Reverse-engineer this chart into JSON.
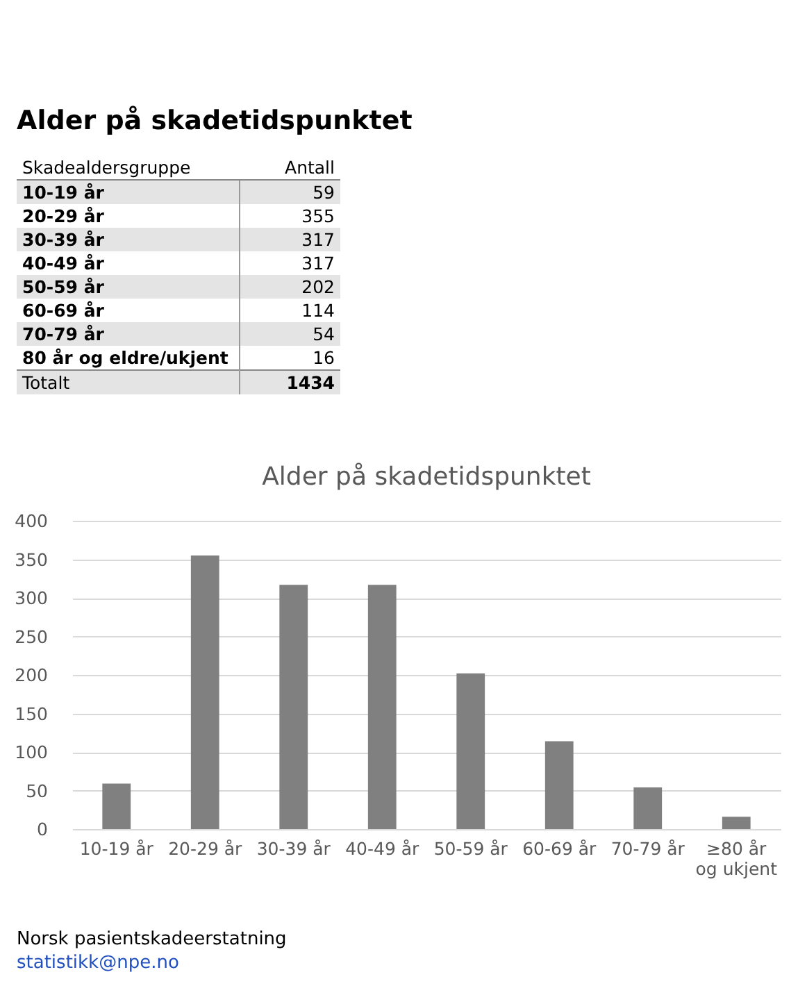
{
  "chart_data": [
    {
      "type": "other",
      "title": "Alder på skadetidspunktet",
      "xlabel": "Skadealdersgruppe",
      "ylabel": "Antall",
      "categories": [
        "10-19 år",
        "20-29 år",
        "30-39 år",
        "40-49 år",
        "50-59 år",
        "60-69 år",
        "70-79 år",
        "80 år og eldre/ukjent"
      ],
      "values": [
        59,
        355,
        317,
        317,
        202,
        114,
        54,
        16
      ],
      "data_labels": true,
      "annotations": [
        "Totalt",
        "1434"
      ]
    },
    {
      "type": "bar",
      "title": "Alder på skadetidspunktet",
      "categories": [
        "10-19 år",
        "20-29 år",
        "30-39 år",
        "40-49 år",
        "50-59 år",
        "60-69 år",
        "70-79 år",
        "≥80 år\nog ukjent"
      ],
      "values": [
        59,
        355,
        317,
        317,
        202,
        114,
        54,
        16
      ],
      "color": "#808080",
      "ylim": [
        0,
        400
      ],
      "yticks": [
        0,
        50,
        100,
        150,
        200,
        250,
        300,
        350,
        400
      ],
      "grid": "y",
      "annotations": [
        "Norsk pasientskadeerstatning",
        "statistikk@npe.no"
      ]
    }
  ]
}
